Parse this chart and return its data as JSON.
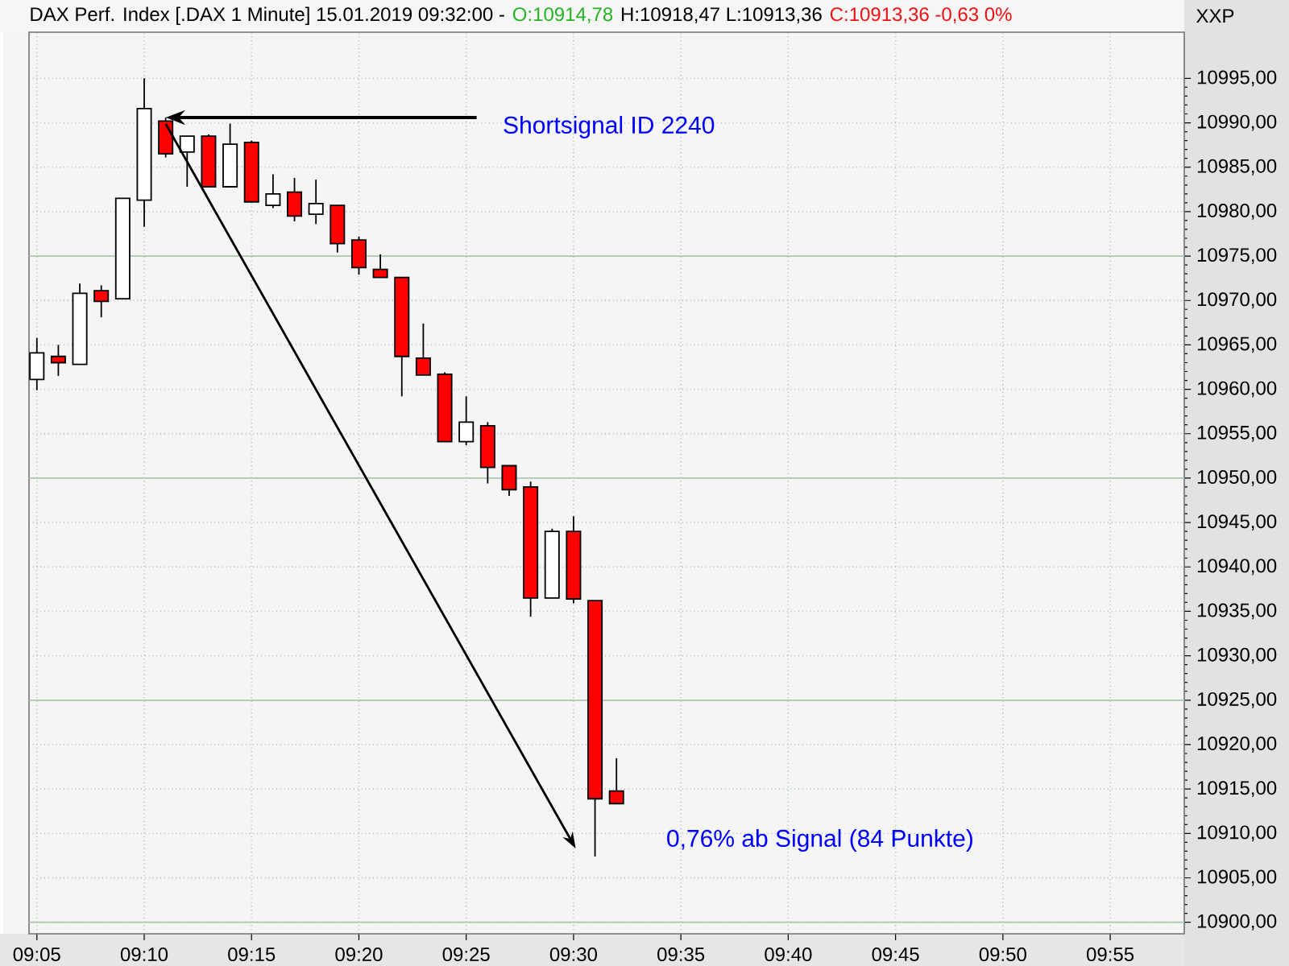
{
  "chart_data": {
    "type": "candlestick",
    "title": "DAX Perf. Index [.DAX 1 Minute] 15.01.2019 09:32:00 -",
    "ylabel": "XXP",
    "x": [
      "2019-01-15T09:05",
      "2019-01-15T09:06",
      "2019-01-15T09:07",
      "2019-01-15T09:08",
      "2019-01-15T09:09",
      "2019-01-15T09:10",
      "2019-01-15T09:11",
      "2019-01-15T09:12",
      "2019-01-15T09:13",
      "2019-01-15T09:14",
      "2019-01-15T09:15",
      "2019-01-15T09:16",
      "2019-01-15T09:17",
      "2019-01-15T09:18",
      "2019-01-15T09:19",
      "2019-01-15T09:20",
      "2019-01-15T09:21",
      "2019-01-15T09:22",
      "2019-01-15T09:23",
      "2019-01-15T09:24",
      "2019-01-15T09:25",
      "2019-01-15T09:26",
      "2019-01-15T09:27",
      "2019-01-15T09:28",
      "2019-01-15T09:29",
      "2019-01-15T09:30",
      "2019-01-15T09:31",
      "2019-01-15T09:32"
    ],
    "ohlc": [
      [
        10961.1,
        10965.8,
        10959.9,
        10964.1
      ],
      [
        10963.7,
        10965.0,
        10961.5,
        10963.0
      ],
      [
        10962.8,
        10971.9,
        10962.8,
        10970.8
      ],
      [
        10971.1,
        10971.7,
        10968.1,
        10969.9
      ],
      [
        10970.2,
        10981.5,
        10970.2,
        10981.5
      ],
      [
        10981.3,
        10995.0,
        10978.3,
        10991.6
      ],
      [
        10990.2,
        10990.6,
        10986.1,
        10986.5
      ],
      [
        10986.7,
        10988.5,
        10982.8,
        10988.5
      ],
      [
        10988.5,
        10988.7,
        10982.7,
        10982.8
      ],
      [
        10982.8,
        10989.9,
        10982.7,
        10987.6
      ],
      [
        10987.8,
        10988.0,
        10981.1,
        10981.1
      ],
      [
        10980.7,
        10984.2,
        10980.4,
        10982.0
      ],
      [
        10982.2,
        10983.8,
        10978.9,
        10979.5
      ],
      [
        10979.7,
        10983.6,
        10978.6,
        10980.9
      ],
      [
        10980.7,
        10980.7,
        10975.4,
        10976.4
      ],
      [
        10976.8,
        10977.2,
        10972.9,
        10973.7
      ],
      [
        10973.5,
        10975.2,
        10972.6,
        10972.6
      ],
      [
        10972.6,
        10972.6,
        10959.2,
        10963.7
      ],
      [
        10963.5,
        10967.4,
        10961.6,
        10961.6
      ],
      [
        10961.7,
        10961.9,
        10954.1,
        10954.1
      ],
      [
        10954.1,
        10959.2,
        10953.7,
        10956.3
      ],
      [
        10955.9,
        10956.3,
        10949.4,
        10951.2
      ],
      [
        10951.4,
        10951.4,
        10948.0,
        10948.7
      ],
      [
        10949.0,
        10949.6,
        10934.4,
        10936.5
      ],
      [
        10936.5,
        10944.3,
        10936.5,
        10944.0
      ],
      [
        10944.0,
        10945.7,
        10935.9,
        10936.4
      ],
      [
        10936.2,
        10936.2,
        10907.4,
        10913.9
      ],
      [
        10914.78,
        10918.47,
        10913.36,
        10913.36
      ]
    ],
    "colors": [
      "#ffffff",
      "#ff0000",
      "#ffffff",
      "#ff0000",
      "#ffffff",
      "#ffffff",
      "#ff0000",
      "#ffffff",
      "#ff0000",
      "#ffffff",
      "#ff0000",
      "#ffffff",
      "#ff0000",
      "#ffffff",
      "#ff0000",
      "#ff0000",
      "#ff0000",
      "#ff0000",
      "#ff0000",
      "#ff0000",
      "#ffffff",
      "#ff0000",
      "#ff0000",
      "#ff0000",
      "#ffffff",
      "#ff0000",
      "#ff0000",
      "#ff0000"
    ],
    "xlim": [
      "2019-01-15T09:04:38",
      "2019-01-15T09:58:27"
    ],
    "xticks": [
      {
        "value": "2019-01-15T09:05",
        "label": "09:05"
      },
      {
        "value": "2019-01-15T09:10",
        "label": "09:10"
      },
      {
        "value": "2019-01-15T09:15",
        "label": "09:15"
      },
      {
        "value": "2019-01-15T09:20",
        "label": "09:20"
      },
      {
        "value": "2019-01-15T09:25",
        "label": "09:25"
      },
      {
        "value": "2019-01-15T09:30",
        "label": "09:30"
      },
      {
        "value": "2019-01-15T09:35",
        "label": "09:35"
      },
      {
        "value": "2019-01-15T09:40",
        "label": "09:40"
      },
      {
        "value": "2019-01-15T09:45",
        "label": "09:45"
      },
      {
        "value": "2019-01-15T09:50",
        "label": "09:50"
      },
      {
        "value": "2019-01-15T09:55",
        "label": "09:55"
      }
    ],
    "ylim": [
      10898.7,
      11000.2
    ],
    "yticks": [
      {
        "value": 10900,
        "label": "10900,00"
      },
      {
        "value": 10905,
        "label": "10905,00"
      },
      {
        "value": 10910,
        "label": "10910,00"
      },
      {
        "value": 10915,
        "label": "10915,00"
      },
      {
        "value": 10920,
        "label": "10920,00"
      },
      {
        "value": 10925,
        "label": "10925,00"
      },
      {
        "value": 10930,
        "label": "10930,00"
      },
      {
        "value": 10935,
        "label": "10935,00"
      },
      {
        "value": 10940,
        "label": "10940,00"
      },
      {
        "value": 10945,
        "label": "10945,00"
      },
      {
        "value": 10950,
        "label": "10950,00"
      },
      {
        "value": 10955,
        "label": "10955,00"
      },
      {
        "value": 10960,
        "label": "10960,00"
      },
      {
        "value": 10965,
        "label": "10965,00"
      },
      {
        "value": 10970,
        "label": "10970,00"
      },
      {
        "value": 10975,
        "label": "10975,00"
      },
      {
        "value": 10980,
        "label": "10980,00"
      },
      {
        "value": 10985,
        "label": "10985,00"
      },
      {
        "value": 10990,
        "label": "10990,00"
      },
      {
        "value": 10995,
        "label": "10995,00"
      }
    ],
    "grid": true,
    "annotations": [
      {
        "text": "Shortsignal ID 2240",
        "x": "2019-01-15T09:11",
        "y": 10990.6
      },
      {
        "text": "0,76% ab Signal (84 Punkte)",
        "x": "2019-01-15T09:31",
        "y": 10907.4
      },
      "O:10914,78",
      "H:10918,47 L:10913,36",
      "C:10913,36 -0,63 0%"
    ]
  }
}
